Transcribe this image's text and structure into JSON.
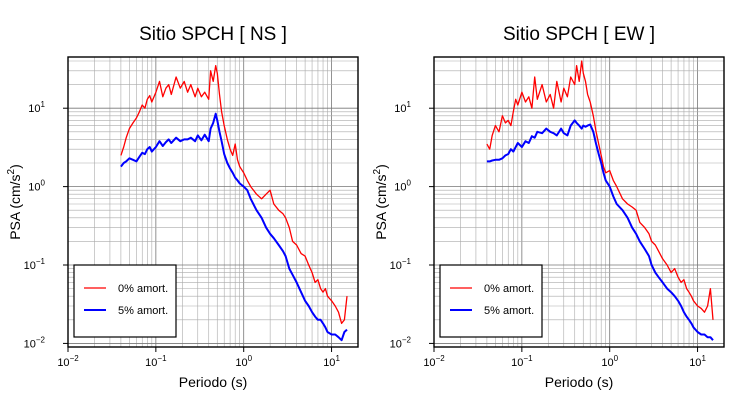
{
  "chart_data": [
    {
      "type": "line",
      "title": "Sitio SPCH [ NS ]",
      "xlabel": "Periodo (s)",
      "ylabel": "PSA (cm/s",
      "ylabel_sup": "2",
      "ylabel_close": ")",
      "xscale": "log",
      "yscale": "log",
      "xlim": [
        0.01,
        20
      ],
      "ylim": [
        0.009,
        45
      ],
      "grid": true,
      "legend": "bottom-left",
      "xticks": [
        {
          "base": "10",
          "exp": "−2",
          "v": 0.01
        },
        {
          "base": "10",
          "exp": "−1",
          "v": 0.1
        },
        {
          "base": "10",
          "exp": "0",
          "v": 1
        },
        {
          "base": "10",
          "exp": "1",
          "v": 10
        }
      ],
      "yticks": [
        {
          "base": "10",
          "exp": "−2",
          "v": 0.01
        },
        {
          "base": "10",
          "exp": "−1",
          "v": 0.1
        },
        {
          "base": "10",
          "exp": "0",
          "v": 1
        },
        {
          "base": "10",
          "exp": "1",
          "v": 10
        }
      ],
      "series": [
        {
          "name": "0% amort.",
          "color": "#ff0000",
          "width": 1.3,
          "x": [
            0.04,
            0.043,
            0.046,
            0.05,
            0.055,
            0.06,
            0.065,
            0.07,
            0.075,
            0.08,
            0.085,
            0.09,
            0.1,
            0.11,
            0.12,
            0.13,
            0.14,
            0.15,
            0.17,
            0.19,
            0.21,
            0.23,
            0.25,
            0.28,
            0.3,
            0.33,
            0.36,
            0.4,
            0.42,
            0.45,
            0.48,
            0.5,
            0.53,
            0.56,
            0.6,
            0.65,
            0.7,
            0.75,
            0.8,
            0.85,
            0.9,
            1.0,
            1.1,
            1.2,
            1.4,
            1.6,
            1.8,
            2.0,
            2.2,
            2.5,
            2.8,
            3.0,
            3.3,
            3.6,
            4.0,
            4.5,
            5.0,
            5.5,
            6.0,
            6.5,
            7.0,
            7.5,
            8.0,
            8.5,
            9.0,
            10.0,
            11.0,
            12.0,
            13.0,
            14.0,
            15.0
          ],
          "y": [
            2.5,
            3.2,
            4.2,
            5.5,
            6.5,
            7.5,
            9.0,
            11.0,
            10.0,
            13.0,
            14.5,
            12.0,
            16.0,
            22.0,
            14.0,
            18.0,
            20.0,
            15.0,
            25.0,
            18.0,
            22.0,
            16.0,
            20.0,
            14.0,
            18.0,
            14.0,
            16.0,
            13.0,
            30.0,
            22.0,
            35.0,
            28.0,
            15.0,
            9.0,
            6.0,
            4.0,
            3.0,
            2.5,
            3.5,
            2.2,
            1.8,
            1.5,
            1.2,
            1.0,
            0.8,
            0.7,
            0.8,
            0.9,
            0.6,
            0.5,
            0.45,
            0.4,
            0.3,
            0.2,
            0.18,
            0.14,
            0.13,
            0.1,
            0.08,
            0.06,
            0.065,
            0.05,
            0.045,
            0.05,
            0.04,
            0.035,
            0.03,
            0.025,
            0.018,
            0.02,
            0.04
          ]
        },
        {
          "name": "5% amort.",
          "color": "#0000ff",
          "width": 2.0,
          "x": [
            0.04,
            0.043,
            0.046,
            0.05,
            0.055,
            0.06,
            0.065,
            0.07,
            0.075,
            0.08,
            0.085,
            0.09,
            0.1,
            0.11,
            0.12,
            0.13,
            0.14,
            0.15,
            0.17,
            0.19,
            0.21,
            0.23,
            0.25,
            0.28,
            0.3,
            0.33,
            0.36,
            0.4,
            0.42,
            0.45,
            0.48,
            0.5,
            0.53,
            0.56,
            0.6,
            0.65,
            0.7,
            0.75,
            0.8,
            0.85,
            0.9,
            1.0,
            1.1,
            1.2,
            1.4,
            1.6,
            1.8,
            2.0,
            2.2,
            2.5,
            2.8,
            3.0,
            3.3,
            3.6,
            4.0,
            4.5,
            5.0,
            5.5,
            6.0,
            6.5,
            7.0,
            7.5,
            8.0,
            8.5,
            9.0,
            10.0,
            11.0,
            12.0,
            13.0,
            14.0,
            15.0
          ],
          "y": [
            1.8,
            2.0,
            2.1,
            2.3,
            2.2,
            2.1,
            2.4,
            2.7,
            2.6,
            3.0,
            3.2,
            2.8,
            3.2,
            3.8,
            3.3,
            3.7,
            4.0,
            3.6,
            4.2,
            3.8,
            4.0,
            4.0,
            4.2,
            3.8,
            4.5,
            3.9,
            4.6,
            3.8,
            5.5,
            6.5,
            8.5,
            7.0,
            5.0,
            3.8,
            2.6,
            2.0,
            1.7,
            1.5,
            1.3,
            1.2,
            1.1,
            1.0,
            0.9,
            0.7,
            0.5,
            0.4,
            0.3,
            0.25,
            0.22,
            0.18,
            0.15,
            0.13,
            0.09,
            0.075,
            0.06,
            0.045,
            0.035,
            0.03,
            0.025,
            0.022,
            0.02,
            0.02,
            0.018,
            0.016,
            0.014,
            0.013,
            0.013,
            0.012,
            0.011,
            0.014,
            0.015
          ]
        }
      ]
    },
    {
      "type": "line",
      "title": "Sitio SPCH [ EW ]",
      "xlabel": "Periodo (s)",
      "ylabel": "PSA (cm/s",
      "ylabel_sup": "2",
      "ylabel_close": ")",
      "xscale": "log",
      "yscale": "log",
      "xlim": [
        0.01,
        20
      ],
      "ylim": [
        0.009,
        45
      ],
      "grid": true,
      "legend": "bottom-left",
      "xticks": [
        {
          "base": "10",
          "exp": "−2",
          "v": 0.01
        },
        {
          "base": "10",
          "exp": "−1",
          "v": 0.1
        },
        {
          "base": "10",
          "exp": "0",
          "v": 1
        },
        {
          "base": "10",
          "exp": "1",
          "v": 10
        }
      ],
      "yticks": [
        {
          "base": "10",
          "exp": "−2",
          "v": 0.01
        },
        {
          "base": "10",
          "exp": "−1",
          "v": 0.1
        },
        {
          "base": "10",
          "exp": "0",
          "v": 1
        },
        {
          "base": "10",
          "exp": "1",
          "v": 10
        }
      ],
      "series": [
        {
          "name": "0% amort.",
          "color": "#ff0000",
          "width": 1.3,
          "x": [
            0.04,
            0.043,
            0.046,
            0.05,
            0.055,
            0.06,
            0.065,
            0.07,
            0.075,
            0.08,
            0.085,
            0.09,
            0.1,
            0.11,
            0.12,
            0.13,
            0.14,
            0.15,
            0.17,
            0.19,
            0.21,
            0.23,
            0.25,
            0.28,
            0.3,
            0.33,
            0.36,
            0.4,
            0.42,
            0.45,
            0.48,
            0.5,
            0.53,
            0.56,
            0.6,
            0.65,
            0.7,
            0.75,
            0.8,
            0.85,
            0.9,
            1.0,
            1.1,
            1.2,
            1.4,
            1.6,
            1.8,
            2.0,
            2.2,
            2.5,
            2.8,
            3.0,
            3.3,
            3.6,
            4.0,
            4.5,
            5.0,
            5.5,
            6.0,
            6.5,
            7.0,
            7.5,
            8.0,
            8.5,
            9.0,
            10.0,
            11.0,
            12.0,
            13.0,
            14.0,
            15.0
          ],
          "y": [
            3.5,
            3.0,
            4.5,
            6.0,
            5.0,
            8.0,
            6.5,
            7.0,
            6.0,
            9.0,
            13.0,
            11.0,
            16.0,
            12.0,
            14.0,
            10.0,
            25.0,
            13.0,
            20.0,
            12.0,
            15.0,
            10.0,
            22.0,
            12.0,
            18.0,
            14.0,
            25.0,
            20.0,
            35.0,
            22.0,
            40.0,
            28.0,
            22.0,
            15.0,
            12.0,
            8.0,
            5.0,
            3.5,
            2.5,
            1.8,
            1.5,
            1.6,
            1.2,
            1.0,
            0.7,
            0.6,
            0.55,
            0.5,
            0.35,
            0.3,
            0.25,
            0.2,
            0.18,
            0.15,
            0.12,
            0.1,
            0.08,
            0.09,
            0.07,
            0.06,
            0.065,
            0.05,
            0.045,
            0.04,
            0.035,
            0.03,
            0.028,
            0.025,
            0.03,
            0.05,
            0.02
          ]
        },
        {
          "name": "5% amort.",
          "color": "#0000ff",
          "width": 2.0,
          "x": [
            0.04,
            0.043,
            0.046,
            0.05,
            0.055,
            0.06,
            0.065,
            0.07,
            0.075,
            0.08,
            0.085,
            0.09,
            0.1,
            0.11,
            0.12,
            0.13,
            0.14,
            0.15,
            0.17,
            0.19,
            0.21,
            0.23,
            0.25,
            0.28,
            0.3,
            0.33,
            0.36,
            0.4,
            0.42,
            0.45,
            0.48,
            0.5,
            0.53,
            0.56,
            0.6,
            0.65,
            0.7,
            0.75,
            0.8,
            0.85,
            0.9,
            1.0,
            1.1,
            1.2,
            1.4,
            1.6,
            1.8,
            2.0,
            2.2,
            2.5,
            2.8,
            3.0,
            3.3,
            3.6,
            4.0,
            4.5,
            5.0,
            5.5,
            6.0,
            6.5,
            7.0,
            7.5,
            8.0,
            8.5,
            9.0,
            10.0,
            11.0,
            12.0,
            13.0,
            14.0,
            15.0
          ],
          "y": [
            2.1,
            2.1,
            2.15,
            2.2,
            2.2,
            2.3,
            2.5,
            2.6,
            3.0,
            2.8,
            3.2,
            3.6,
            3.2,
            3.8,
            3.6,
            4.4,
            4.2,
            5.0,
            4.8,
            5.5,
            5.0,
            4.8,
            4.5,
            5.5,
            4.8,
            4.5,
            6.0,
            7.0,
            6.5,
            6.0,
            5.5,
            6.0,
            5.8,
            6.0,
            6.2,
            5.0,
            3.5,
            2.6,
            2.0,
            1.5,
            1.2,
            1.0,
            0.75,
            0.6,
            0.5,
            0.4,
            0.3,
            0.25,
            0.2,
            0.16,
            0.13,
            0.1,
            0.08,
            0.07,
            0.06,
            0.05,
            0.045,
            0.04,
            0.035,
            0.03,
            0.025,
            0.022,
            0.02,
            0.018,
            0.016,
            0.014,
            0.013,
            0.013,
            0.012,
            0.012,
            0.011
          ]
        }
      ]
    }
  ]
}
